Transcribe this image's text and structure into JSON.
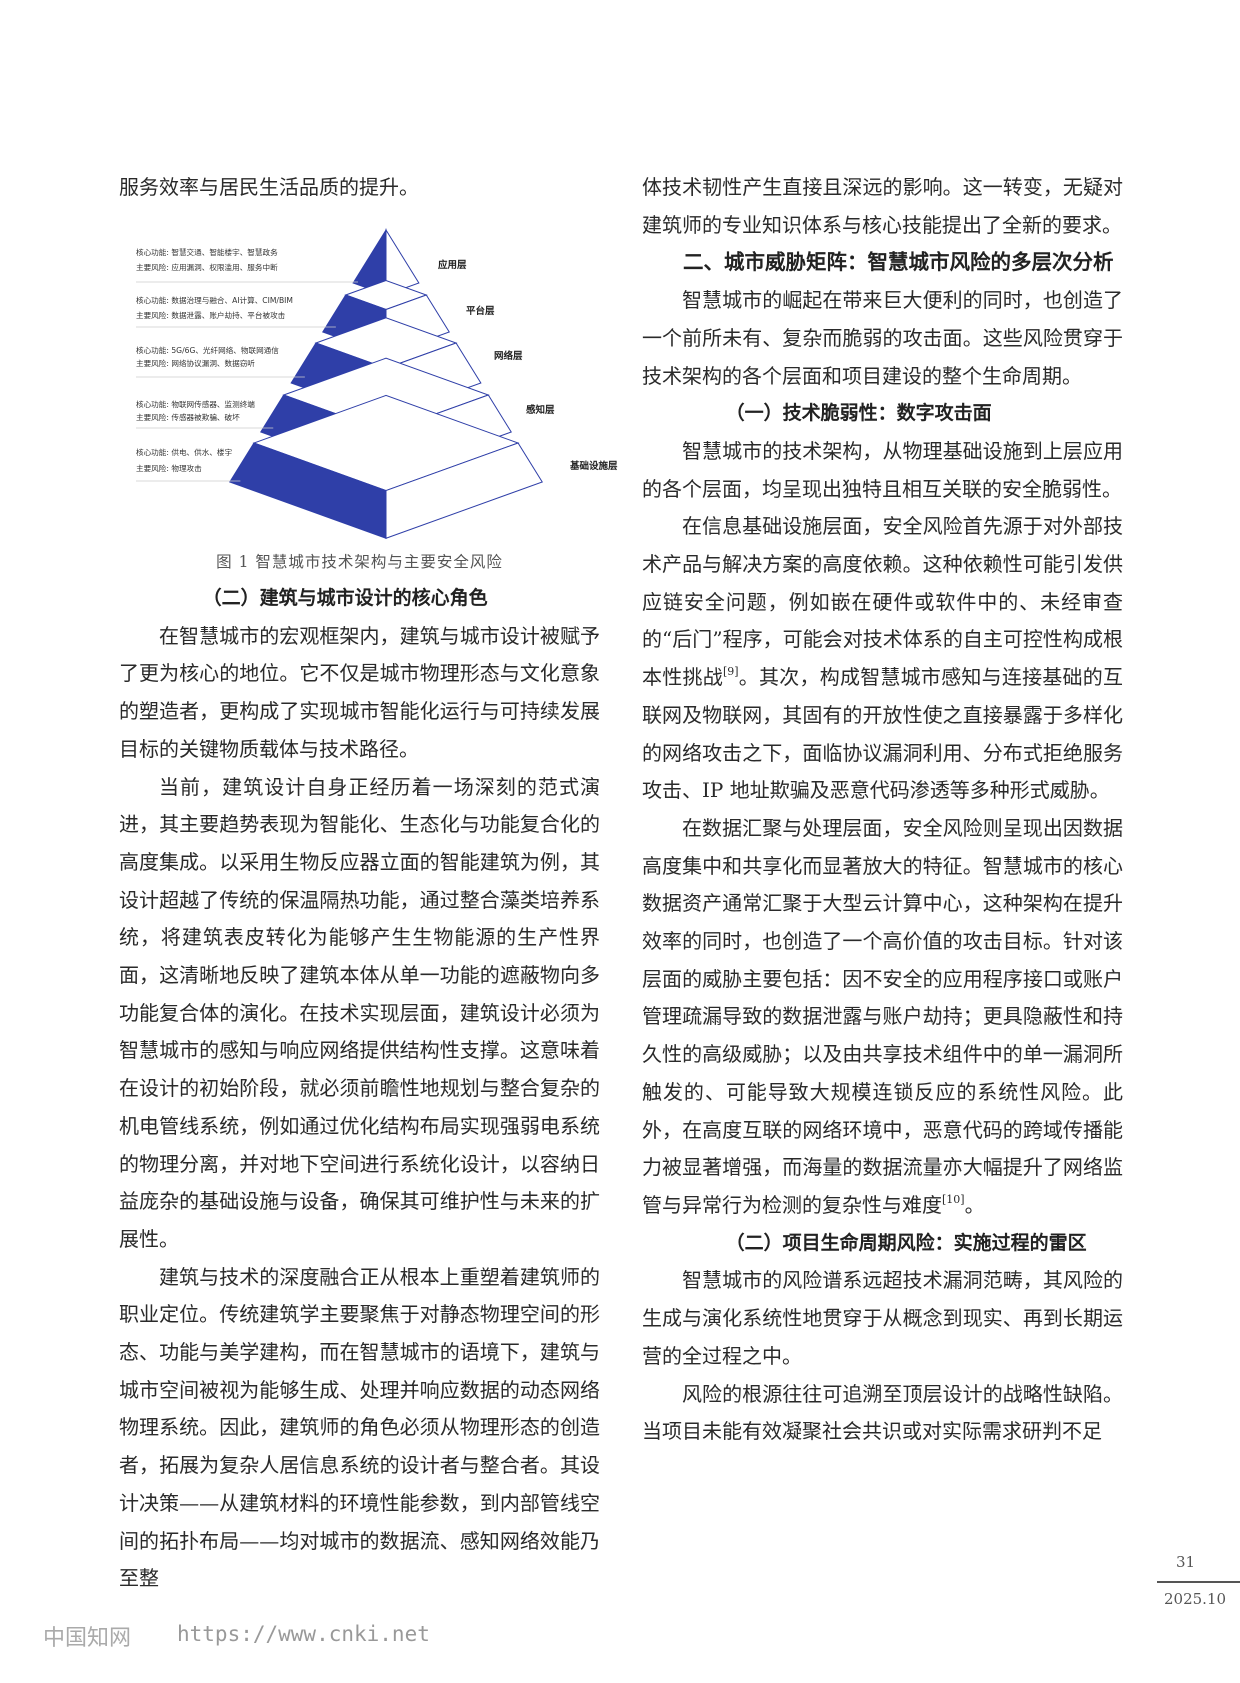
{
  "left": {
    "p0": "服务效率与居民生活品质的提升。",
    "figure": {
      "caption": "图 1  智慧城市技术架构与主要安全风险",
      "colors": {
        "blue": "#2f3fa8",
        "white": "#ffffff",
        "outline": "#2f3fa8"
      },
      "layers": [
        {
          "label": "应用层",
          "core": "核心功能: 智慧交通、智能楼宇、智慧政务",
          "risk": "主要风险: 应用漏洞、权限滥用、服务中断"
        },
        {
          "label": "平台层",
          "core": "核心功能: 数据治理与融合、AI计算、CIM/BIM",
          "risk": "主要风险: 数据泄露、账户劫持、平台被攻击"
        },
        {
          "label": "网络层",
          "core": "核心功能: 5G/6G、光纤网络、物联网通信",
          "risk": "主要风险: 网络协议漏洞、数据窃听"
        },
        {
          "label": "感知层",
          "core": "核心功能: 物联网传感器、监测终端",
          "risk": "主要风险: 传感器被欺骗、破坏"
        },
        {
          "label": "基础设施层",
          "core": "核心功能: 供电、供水、楼宇",
          "risk": "主要风险: 物理攻击"
        }
      ]
    },
    "heading": "（二）建筑与城市设计的核心角色",
    "paragraphs": [
      "在智慧城市的宏观框架内，建筑与城市设计被赋予了更为核心的地位。它不仅是城市物理形态与文化意象的塑造者，更构成了实现城市智能化运行与可持续发展目标的关键物质载体与技术路径。",
      "当前，建筑设计自身正经历着一场深刻的范式演进，其主要趋势表现为智能化、生态化与功能复合化的高度集成。以采用生物反应器立面的智能建筑为例，其设计超越了传统的保温隔热功能，通过整合藻类培养系统，将建筑表皮转化为能够产生生物能源的生产性界面，这清晰地反映了建筑本体从单一功能的遮蔽物向多功能复合体的演化。在技术实现层面，建筑设计必须为智慧城市的感知与响应网络提供结构性支撑。这意味着在设计的初始阶段，就必须前瞻性地规划与整合复杂的机电管线系统，例如通过优化结构布局实现强弱电系统的物理分离，并对地下空间进行系统化设计，以容纳日益庞杂的基础设施与设备，确保其可维护性与未来的扩展性。",
      "建筑与技术的深度融合正从根本上重塑着建筑师的职业定位。传统建筑学主要聚焦于对静态物理空间的形态、功能与美学建构，而在智慧城市的语境下，建筑与城市空间被视为能够生成、处理并响应数据的动态网络物理系统。因此，建筑师的角色必须从物理形态的创造者，拓展为复杂人居信息系统的设计者与整合者。其设计决策——从建筑材料的环境性能参数，到内部管线空间的拓扑布局——均对城市的数据流、感知网络效能乃至整"
    ]
  },
  "right": {
    "p0": "体技术韧性产生直接且深远的影响。这一转变，无疑对建筑师的专业知识体系与核心技能提出了全新的要求。",
    "section_title": "二、城市威胁矩阵：智慧城市风险的多层次分析",
    "p1": "智慧城市的崛起在带来巨大便利的同时，也创造了一个前所未有、复杂而脆弱的攻击面。这些风险贯穿于技术架构的各个层面和项目建设的整个生命周期。",
    "sub1": "（一）技术脆弱性：数字攻击面",
    "p2": "智慧城市的技术架构，从物理基础设施到上层应用的各个层面，均呈现出独特且相互关联的安全脆弱性。",
    "p3a": "在信息基础设施层面，安全风险首先源于对外部技术产品与解决方案的高度依赖。这种依赖性可能引发供应链安全问题，例如嵌在硬件或软件中的、未经审查的“后门”程序，可能会对技术体系的自主可控性构成根本性挑战",
    "p3ref": "[9]",
    "p3b": "。其次，构成智慧城市感知与连接基础的互联网及物联网，其固有的开放性使之直接暴露于多样化的网络攻击之下，面临协议漏洞利用、分布式拒绝服务攻击、IP 地址欺骗及恶意代码渗透等多种形式威胁。",
    "p4a": "在数据汇聚与处理层面，安全风险则呈现出因数据高度集中和共享化而显著放大的特征。智慧城市的核心数据资产通常汇聚于大型云计算中心，这种架构在提升效率的同时，也创造了一个高价值的攻击目标。针对该层面的威胁主要包括：因不安全的应用程序接口或账户管理疏漏导致的数据泄露与账户劫持；更具隐蔽性和持久性的高级威胁；以及由共享技术组件中的单一漏洞所触发的、可能导致大规模连锁反应的系统性风险。此外，在高度互联的网络环境中，恶意代码的跨域传播能力被显著增强，而海量的数据流量亦大幅提升了网络监管与异常行为检测的复杂性与难度",
    "p4ref": "[10]",
    "p4b": "。",
    "sub2": "（二）项目生命周期风险：实施过程的雷区",
    "p5": "智慧城市的风险谱系远超技术漏洞范畴，其风险的生成与演化系统性地贯穿于从概念到现实、再到长期运营的全过程之中。",
    "p6": "风险的根源往往可追溯至顶层设计的战略性缺陷。当项目未能有效凝聚社会共识或对实际需求研判不足"
  },
  "footer": {
    "page_number": "31",
    "issue": "2025.10",
    "watermark": "中国知网",
    "url": "https://www.cnki.net"
  }
}
